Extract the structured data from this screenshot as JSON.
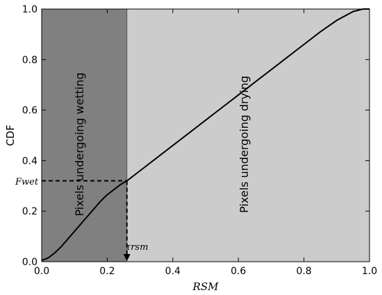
{
  "chart_data": {
    "type": "line",
    "xlabel": "RSM",
    "ylabel": "CDF",
    "xlim": [
      0.0,
      1.0
    ],
    "ylim": [
      0.0,
      1.0
    ],
    "x_ticks": [
      "0.0",
      "0.2",
      "0.4",
      "0.6",
      "0.8",
      "1.0"
    ],
    "y_ticks": [
      "0.0",
      "0.2",
      "0.4",
      "0.6",
      "0.8",
      "1.0"
    ],
    "threshold_x": 0.26,
    "threshold_y": 0.32,
    "threshold_x_label": "τrsm",
    "threshold_y_label": "Fwet",
    "regions": [
      {
        "label": "Pixels undergoing wetting",
        "x_range": [
          0.0,
          0.26
        ],
        "color": "#808080"
      },
      {
        "label": "Pixels undergoing drying",
        "x_range": [
          0.26,
          1.0
        ],
        "color": "#cccccc"
      }
    ],
    "series": [
      {
        "color": "#000000",
        "x": [
          0.0,
          0.02,
          0.04,
          0.06,
          0.08,
          0.1,
          0.12,
          0.14,
          0.16,
          0.18,
          0.2,
          0.22,
          0.24,
          0.26,
          0.3,
          0.35,
          0.4,
          0.45,
          0.5,
          0.55,
          0.6,
          0.65,
          0.7,
          0.75,
          0.8,
          0.85,
          0.9,
          0.95,
          0.98,
          1.0
        ],
        "y": [
          0.005,
          0.015,
          0.035,
          0.06,
          0.09,
          0.12,
          0.15,
          0.18,
          0.21,
          0.24,
          0.265,
          0.285,
          0.305,
          0.32,
          0.36,
          0.41,
          0.46,
          0.51,
          0.56,
          0.61,
          0.66,
          0.71,
          0.76,
          0.81,
          0.86,
          0.91,
          0.955,
          0.99,
          1.0,
          1.0
        ]
      }
    ],
    "grid": false,
    "legend": "none"
  }
}
